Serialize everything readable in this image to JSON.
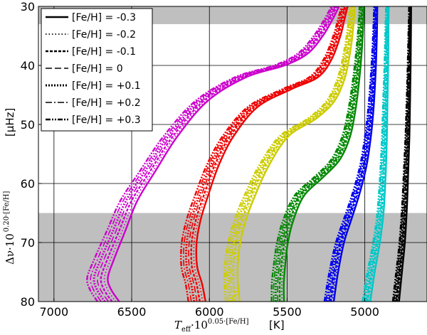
{
  "chart_data": {
    "type": "line",
    "xlabel": {
      "main": "T",
      "sub": "eff",
      "mid": "·10",
      "exp": "0.05·[Fe/H]",
      "unit": "[K]"
    },
    "ylabel": {
      "main": "Δν·10",
      "exp": "0.20·[Fe/H]",
      "unit": "[μHz]"
    },
    "xlim": [
      7100,
      4600
    ],
    "ylim": [
      80,
      30
    ],
    "x_ticks": [
      7000,
      6500,
      6000,
      5500,
      5000
    ],
    "y_ticks": [
      30,
      40,
      50,
      60,
      70,
      80
    ],
    "grid": true,
    "shaded_bands": [
      {
        "y_from": 30,
        "y_to": 33,
        "color": "#bfbfbf"
      },
      {
        "y_from": 65,
        "y_to": 80,
        "color": "#bfbfbf"
      }
    ],
    "legend": {
      "placement": "top-left",
      "entries": [
        {
          "label": "[Fe/H] = -0.3",
          "dash": "none",
          "width": 2.4
        },
        {
          "label": "[Fe/H] = -0.2",
          "dash": "1.5 3",
          "width": 1.8
        },
        {
          "label": "[Fe/H] = -0.1",
          "dash": "4 2",
          "width": 2.4
        },
        {
          "label": "[Fe/H] = 0",
          "dash": "9 4",
          "width": 1.6
        },
        {
          "label": "[Fe/H] = +0.1",
          "dash": "2 2",
          "width": 3
        },
        {
          "label": "[Fe/H] = +0.2",
          "dash": "9 3 2 3",
          "width": 1.6
        },
        {
          "label": "[Fe/H] = +0.3",
          "dash": "7 2 2 2 2 2",
          "width": 2.4
        }
      ]
    },
    "tracks": [
      {
        "color": "#cc00cc",
        "spread": 70,
        "points": [
          [
            6650,
            80
          ],
          [
            6700,
            78
          ],
          [
            6720,
            76
          ],
          [
            6680,
            73
          ],
          [
            6600,
            68
          ],
          [
            6520,
            63
          ],
          [
            6400,
            58
          ],
          [
            6250,
            52
          ],
          [
            6050,
            46
          ],
          [
            5800,
            42
          ],
          [
            5550,
            40
          ],
          [
            5400,
            38
          ],
          [
            5300,
            35
          ],
          [
            5230,
            32
          ],
          [
            5190,
            30
          ]
        ]
      },
      {
        "color": "#ee0000",
        "spread": 55,
        "points": [
          [
            6080,
            80
          ],
          [
            6100,
            77
          ],
          [
            6130,
            74
          ],
          [
            6130,
            70
          ],
          [
            6100,
            66
          ],
          [
            6050,
            62
          ],
          [
            5980,
            57
          ],
          [
            5880,
            52
          ],
          [
            5720,
            47
          ],
          [
            5500,
            44
          ],
          [
            5330,
            42
          ],
          [
            5240,
            39
          ],
          [
            5180,
            35
          ],
          [
            5150,
            32
          ],
          [
            5130,
            30
          ]
        ]
      },
      {
        "color": "#cccc00",
        "spread": 45,
        "points": [
          [
            5850,
            80
          ],
          [
            5860,
            77
          ],
          [
            5860,
            74
          ],
          [
            5840,
            70
          ],
          [
            5800,
            66
          ],
          [
            5740,
            62
          ],
          [
            5650,
            57
          ],
          [
            5520,
            52
          ],
          [
            5340,
            49
          ],
          [
            5220,
            46
          ],
          [
            5150,
            42
          ],
          [
            5110,
            37
          ],
          [
            5090,
            33
          ],
          [
            5080,
            30
          ]
        ]
      },
      {
        "color": "#008800",
        "spread": 40,
        "points": [
          [
            5560,
            80
          ],
          [
            5560,
            77
          ],
          [
            5550,
            74
          ],
          [
            5530,
            70
          ],
          [
            5490,
            66
          ],
          [
            5420,
            62
          ],
          [
            5300,
            59
          ],
          [
            5190,
            56
          ],
          [
            5120,
            52
          ],
          [
            5080,
            47
          ],
          [
            5050,
            41
          ],
          [
            5030,
            35
          ],
          [
            5020,
            30
          ]
        ]
      },
      {
        "color": "#0000ee",
        "spread": 30,
        "points": [
          [
            5230,
            80
          ],
          [
            5200,
            75
          ],
          [
            5160,
            70
          ],
          [
            5110,
            66
          ],
          [
            5060,
            62
          ],
          [
            5010,
            57
          ],
          [
            4980,
            52
          ],
          [
            4960,
            47
          ],
          [
            4945,
            41
          ],
          [
            4935,
            35
          ],
          [
            4930,
            30
          ]
        ]
      },
      {
        "color": "#00c8c8",
        "spread": 25,
        "points": [
          [
            4990,
            80
          ],
          [
            4960,
            75
          ],
          [
            4925,
            70
          ],
          [
            4900,
            65
          ],
          [
            4885,
            59
          ],
          [
            4875,
            53
          ],
          [
            4868,
            46
          ],
          [
            4862,
            40
          ],
          [
            4858,
            34
          ],
          [
            4855,
            30
          ]
        ]
      },
      {
        "color": "#000000",
        "spread": 20,
        "points": [
          [
            4800,
            80
          ],
          [
            4780,
            75
          ],
          [
            4760,
            70
          ],
          [
            4745,
            64
          ],
          [
            4735,
            58
          ],
          [
            4726,
            52
          ],
          [
            4720,
            46
          ],
          [
            4715,
            40
          ],
          [
            4711,
            34
          ],
          [
            4709,
            30
          ]
        ]
      }
    ]
  }
}
